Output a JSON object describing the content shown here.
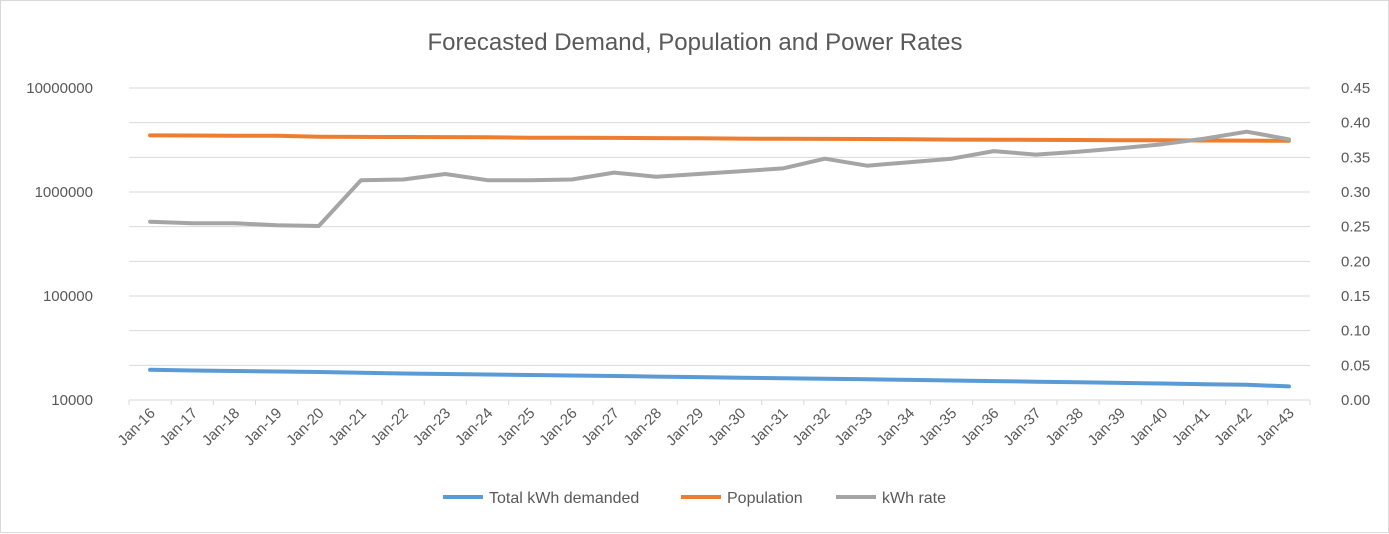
{
  "chart_data": {
    "type": "line",
    "title": "Forecasted Demand, Population and Power Rates",
    "categories": [
      "Jan-16",
      "Jan-17",
      "Jan-18",
      "Jan-19",
      "Jan-20",
      "Jan-21",
      "Jan-22",
      "Jan-23",
      "Jan-24",
      "Jan-25",
      "Jan-26",
      "Jan-27",
      "Jan-28",
      "Jan-29",
      "Jan-30",
      "Jan-31",
      "Jan-32",
      "Jan-33",
      "Jan-34",
      "Jan-35",
      "Jan-36",
      "Jan-37",
      "Jan-38",
      "Jan-39",
      "Jan-40",
      "Jan-41",
      "Jan-42",
      "Jan-43"
    ],
    "y_left": {
      "scale": "log",
      "range": [
        10000,
        10000000
      ],
      "ticks": [
        "10000",
        "100000",
        "1000000",
        "10000000"
      ]
    },
    "y_right": {
      "scale": "linear",
      "range": [
        0,
        0.45
      ],
      "ticks": [
        "0.00",
        "0.05",
        "0.10",
        "0.15",
        "0.20",
        "0.25",
        "0.30",
        "0.35",
        "0.40",
        "0.45"
      ]
    },
    "grid": true,
    "legend_position": "bottom",
    "series": [
      {
        "name": "Total kWh demanded",
        "axis": "left",
        "color": "#5b9bd5",
        "values": [
          19500,
          19200,
          19000,
          18800,
          18600,
          18300,
          18000,
          17800,
          17600,
          17400,
          17200,
          17000,
          16800,
          16600,
          16400,
          16200,
          16000,
          15800,
          15600,
          15400,
          15200,
          15000,
          14800,
          14600,
          14400,
          14200,
          14000,
          13500
        ]
      },
      {
        "name": "Population",
        "axis": "left",
        "color": "#ed7d31",
        "values": [
          3500000,
          3490000,
          3480000,
          3470000,
          3400000,
          3390000,
          3380000,
          3370000,
          3360000,
          3330000,
          3320000,
          3310000,
          3300000,
          3290000,
          3260000,
          3250000,
          3240000,
          3230000,
          3220000,
          3190000,
          3180000,
          3170000,
          3160000,
          3150000,
          3140000,
          3130000,
          3120000,
          3110000
        ]
      },
      {
        "name": "kWh rate",
        "axis": "right",
        "color": "#a5a5a5",
        "values": [
          0.257,
          0.255,
          0.255,
          0.252,
          0.251,
          0.317,
          0.318,
          0.326,
          0.317,
          0.317,
          0.318,
          0.328,
          0.322,
          0.326,
          0.33,
          0.334,
          0.348,
          0.338,
          0.343,
          0.348,
          0.359,
          0.354,
          0.358,
          0.363,
          0.369,
          0.377,
          0.387,
          0.376
        ]
      }
    ]
  }
}
